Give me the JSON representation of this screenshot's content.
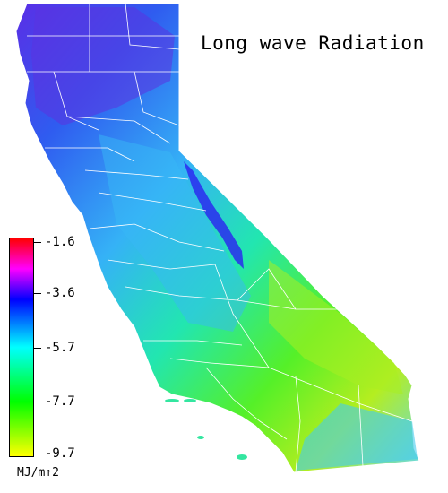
{
  "title": "Long wave Radiation",
  "legend": {
    "unit": "MJ/m↑2",
    "ticks": [
      {
        "label": "-1.6",
        "value": -1.6
      },
      {
        "label": "-3.6",
        "value": -3.6
      },
      {
        "label": "-5.7",
        "value": -5.7
      },
      {
        "label": "-7.7",
        "value": -7.7
      },
      {
        "label": "-9.7",
        "value": -9.7
      }
    ],
    "range": [
      -9.7,
      -1.6
    ],
    "colors": [
      "#ffff00",
      "#00ff00",
      "#00ffff",
      "#0000ff",
      "#ff00ff",
      "#ff0000"
    ]
  },
  "map": {
    "region": "California counties",
    "gradient_colors": {
      "north": "#5533ee",
      "central_west": "#33aaff",
      "central": "#22ee99",
      "southeast": "#99ee22",
      "south": "#22ddcc",
      "sierra_peaks": "#2222ff"
    }
  }
}
